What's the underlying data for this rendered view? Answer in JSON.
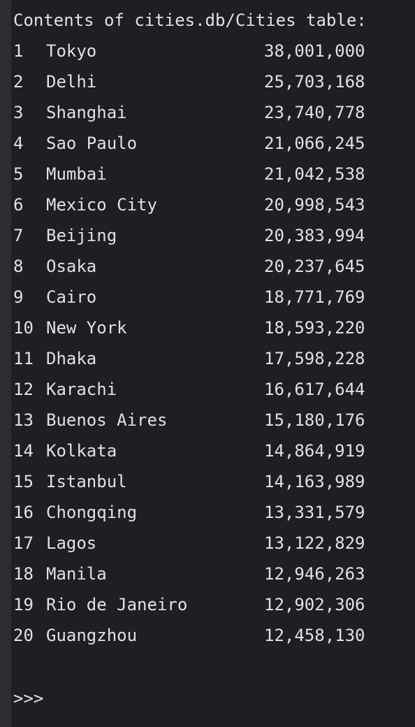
{
  "console": {
    "header": "Contents of cities.db/Cities table:",
    "rows": [
      {
        "rank": "1",
        "city": "Tokyo",
        "population": "38,001,000"
      },
      {
        "rank": "2",
        "city": "Delhi",
        "population": "25,703,168"
      },
      {
        "rank": "3",
        "city": "Shanghai",
        "population": "23,740,778"
      },
      {
        "rank": "4",
        "city": "Sao Paulo",
        "population": "21,066,245"
      },
      {
        "rank": "5",
        "city": "Mumbai",
        "population": "21,042,538"
      },
      {
        "rank": "6",
        "city": "Mexico City",
        "population": "20,998,543"
      },
      {
        "rank": "7",
        "city": "Beijing",
        "population": "20,383,994"
      },
      {
        "rank": "8",
        "city": "Osaka",
        "population": "20,237,645"
      },
      {
        "rank": "9",
        "city": "Cairo",
        "population": "18,771,769"
      },
      {
        "rank": "10",
        "city": "New York",
        "population": "18,593,220"
      },
      {
        "rank": "11",
        "city": "Dhaka",
        "population": "17,598,228"
      },
      {
        "rank": "12",
        "city": "Karachi",
        "population": "16,617,644"
      },
      {
        "rank": "13",
        "city": "Buenos Aires",
        "population": "15,180,176"
      },
      {
        "rank": "14",
        "city": "Kolkata",
        "population": "14,864,919"
      },
      {
        "rank": "15",
        "city": "Istanbul",
        "population": "14,163,989"
      },
      {
        "rank": "16",
        "city": "Chongqing",
        "population": "13,331,579"
      },
      {
        "rank": "17",
        "city": "Lagos",
        "population": "13,122,829"
      },
      {
        "rank": "18",
        "city": "Manila",
        "population": "12,946,263"
      },
      {
        "rank": "19",
        "city": "Rio de Janeiro",
        "population": "12,902,306"
      },
      {
        "rank": "20",
        "city": "Guangzhou",
        "population": "12,458,130"
      }
    ],
    "prompt": ">>>"
  },
  "colors": {
    "background": "#1e1f22",
    "gutter": "#2b2d30",
    "text": "#dfe1e5"
  }
}
